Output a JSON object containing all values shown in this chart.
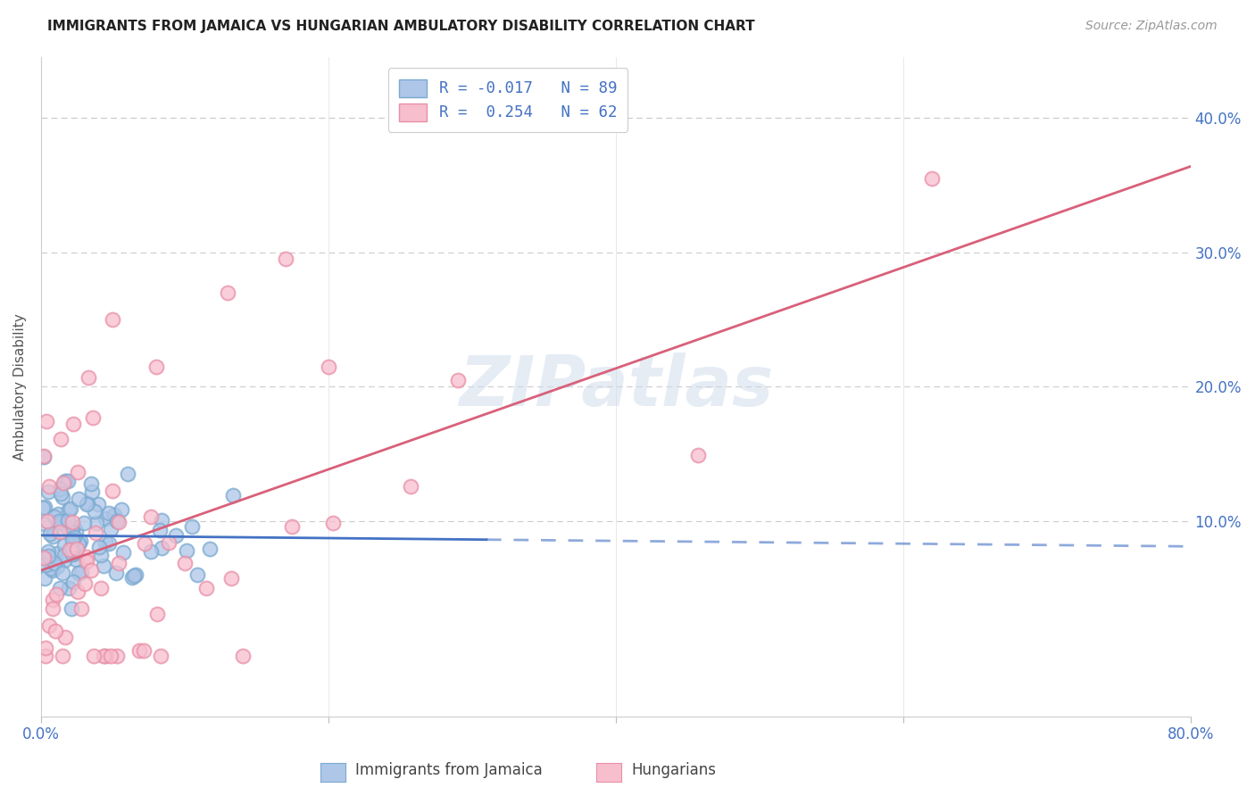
{
  "title": "IMMIGRANTS FROM JAMAICA VS HUNGARIAN AMBULATORY DISABILITY CORRELATION CHART",
  "source": "Source: ZipAtlas.com",
  "ylabel": "Ambulatory Disability",
  "xmin": 0.0,
  "xmax": 0.8,
  "ymin": -0.045,
  "ymax": 0.445,
  "legend_label1": "R = -0.017   N = 89",
  "legend_label2": "R =  0.254   N = 62",
  "legend_label1_bottom": "Immigrants from Jamaica",
  "legend_label2_bottom": "Hungarians",
  "watermark": "ZIPatlas",
  "series1_face": "#aec6e8",
  "series1_edge": "#7aaad0",
  "series2_face": "#f7bece",
  "series2_edge": "#e890a8",
  "trendline1_color": "#4472c4",
  "trendline2_color": "#d9607a",
  "ytick_vals": [
    0.1,
    0.2,
    0.3,
    0.4
  ],
  "ytick_labels": [
    "10.0%",
    "20.0%",
    "30.0%",
    "40.0%"
  ],
  "xtick_vals": [
    0.0,
    0.8
  ],
  "xtick_labels": [
    "0.0%",
    "80.0%"
  ],
  "grid_color": "#cccccc",
  "title_color": "#222222",
  "source_color": "#999999",
  "axis_label_color": "#555555",
  "tick_color": "#4472c4",
  "marker_size": 130,
  "marker_lw": 1.5
}
